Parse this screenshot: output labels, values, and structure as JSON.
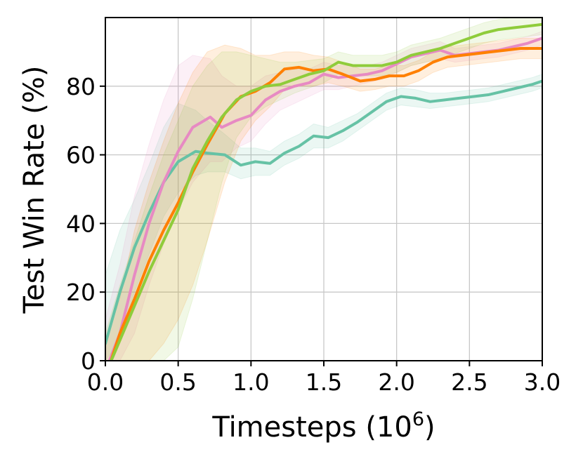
{
  "chart_data": {
    "type": "line",
    "xlabel": "Timesteps (10",
    "xlabel_sup": "6",
    "xlabel_close": ")",
    "ylabel": "Test Win Rate (%)",
    "xlim": [
      0,
      3
    ],
    "ylim": [
      0,
      100
    ],
    "grid": true,
    "x_ticks": [
      "0.0",
      "0.5",
      "1.0",
      "1.5",
      "2.0",
      "2.5",
      "3.0"
    ],
    "y_ticks": [
      "0",
      "20",
      "40",
      "60",
      "80"
    ],
    "series": [
      {
        "color": "#66c2a5",
        "x": [
          0,
          0.1,
          0.2,
          0.3,
          0.4,
          0.5,
          0.62,
          0.7,
          0.82,
          0.93,
          1.03,
          1.13,
          1.23,
          1.33,
          1.43,
          1.53,
          1.63,
          1.73,
          1.83,
          1.93,
          2.03,
          2.13,
          2.23,
          2.33,
          2.43,
          2.53,
          2.63,
          2.73,
          2.83,
          2.93,
          3.0
        ],
        "y": [
          5,
          20,
          33,
          43,
          52,
          58,
          61,
          60.5,
          60,
          57,
          58,
          57.5,
          60.5,
          62.5,
          65.5,
          65,
          67,
          69.5,
          72.5,
          75.5,
          77,
          76.5,
          75.5,
          76,
          76.5,
          77,
          77.5,
          78.5,
          79.5,
          80.5,
          81.5
        ],
        "band_lower": [
          0,
          6,
          20,
          31,
          42,
          49,
          54,
          55,
          55,
          53,
          54,
          54,
          57,
          59,
          62,
          62,
          64,
          67,
          70,
          73,
          74.5,
          74,
          73.5,
          74,
          74.5,
          75,
          75.5,
          76.5,
          77.5,
          78.5,
          79.5
        ],
        "band_upper": [
          25,
          38,
          47,
          57,
          68,
          75,
          73,
          70,
          66,
          62,
          62,
          61,
          64,
          66,
          69,
          68,
          70,
          72,
          75,
          78,
          79.5,
          79,
          78,
          78,
          78.5,
          79,
          79.5,
          80.5,
          81.5,
          82.5,
          83.5
        ]
      },
      {
        "color": "#e78ac3",
        "x": [
          0,
          0.1,
          0.2,
          0.3,
          0.4,
          0.5,
          0.6,
          0.72,
          0.8,
          0.9,
          1.0,
          1.1,
          1.2,
          1.3,
          1.4,
          1.5,
          1.6,
          1.7,
          1.8,
          1.9,
          2.0,
          2.1,
          2.2,
          2.3,
          2.4,
          2.5,
          2.6,
          2.7,
          2.8,
          2.9,
          3.0
        ],
        "y": [
          -3,
          8,
          25,
          40,
          52,
          61,
          68,
          71,
          68,
          70,
          71.5,
          76,
          78.5,
          80,
          81,
          83.5,
          82.5,
          83,
          83.5,
          84.5,
          86.5,
          88.5,
          89.5,
          90.5,
          89,
          89.5,
          90,
          90.5,
          91.5,
          92.5,
          94
        ],
        "band_lower": [
          0,
          0,
          8,
          22,
          34,
          44,
          52,
          58,
          58,
          62,
          64,
          69,
          73,
          75,
          77,
          79,
          79,
          80,
          81,
          82,
          84,
          86,
          87,
          88,
          87,
          87.5,
          88,
          88.5,
          89.5,
          90.5,
          92
        ],
        "band_upper": [
          12,
          28,
          48,
          63,
          76,
          86,
          89,
          88,
          83,
          80,
          80,
          83,
          84,
          85,
          85,
          87,
          86,
          86,
          86,
          87,
          89,
          91,
          92,
          93,
          91,
          91.5,
          92,
          92.5,
          93.5,
          94.5,
          96
        ]
      },
      {
        "color": "#ff8000",
        "x": [
          0,
          0.1,
          0.2,
          0.3,
          0.4,
          0.5,
          0.6,
          0.7,
          0.82,
          0.93,
          1.03,
          1.13,
          1.23,
          1.33,
          1.43,
          1.53,
          1.63,
          1.75,
          1.85,
          1.95,
          2.05,
          2.15,
          2.25,
          2.35,
          2.45,
          2.55,
          2.65,
          2.75,
          2.85,
          2.95,
          3.0
        ],
        "y": [
          -5,
          8,
          18,
          29,
          38,
          46,
          55,
          63,
          72,
          77,
          78.5,
          81,
          85,
          85.5,
          84.5,
          85,
          83.5,
          81.5,
          82,
          83,
          83,
          84.5,
          87,
          88.5,
          89,
          89.5,
          90,
          90.5,
          91,
          91,
          91
        ],
        "band_lower": [
          0,
          0,
          0,
          0,
          5,
          12,
          22,
          35,
          52,
          64,
          70,
          74,
          79,
          80,
          80,
          81,
          80,
          78.5,
          79,
          80,
          80,
          81.5,
          84,
          85.5,
          86,
          86.5,
          87,
          87.5,
          88,
          88,
          88
        ],
        "band_upper": [
          6,
          18,
          38,
          52,
          64,
          75,
          84,
          90,
          92,
          91,
          89,
          89,
          90,
          90,
          89,
          88.5,
          87,
          85,
          85,
          86,
          86,
          87.5,
          90,
          91.5,
          92,
          92.5,
          93,
          93.5,
          94,
          94,
          94
        ]
      },
      {
        "color": "#8fcc3b",
        "x": [
          0,
          0.1,
          0.2,
          0.3,
          0.4,
          0.5,
          0.6,
          0.7,
          0.8,
          0.9,
          1.0,
          1.1,
          1.2,
          1.3,
          1.4,
          1.5,
          1.6,
          1.7,
          1.8,
          1.9,
          2.0,
          2.1,
          2.2,
          2.3,
          2.4,
          2.5,
          2.6,
          2.7,
          2.8,
          2.9,
          3.0
        ],
        "y": [
          -4,
          6,
          16,
          26,
          35,
          44,
          56,
          64,
          71,
          76,
          78.5,
          80,
          80.5,
          82,
          83.5,
          84.5,
          87,
          86,
          86,
          86,
          87,
          89,
          90,
          91,
          92.5,
          94,
          95.5,
          96.5,
          97,
          97.5,
          98
        ],
        "band_lower": [
          0,
          0,
          0,
          0,
          0,
          4,
          18,
          35,
          52,
          65,
          71,
          74,
          76,
          78,
          79.5,
          81,
          83.5,
          83,
          83,
          83,
          84,
          86,
          87,
          88,
          89.5,
          91,
          92.5,
          93.5,
          94,
          94.5,
          95
        ],
        "band_upper": [
          8,
          22,
          35,
          48,
          60,
          70,
          80,
          86,
          90,
          90,
          89,
          88,
          87,
          87,
          87.5,
          88,
          90,
          89,
          89,
          89,
          90,
          92,
          93,
          94,
          95.5,
          97,
          98.5,
          99.5,
          100,
          100,
          100
        ]
      }
    ]
  }
}
